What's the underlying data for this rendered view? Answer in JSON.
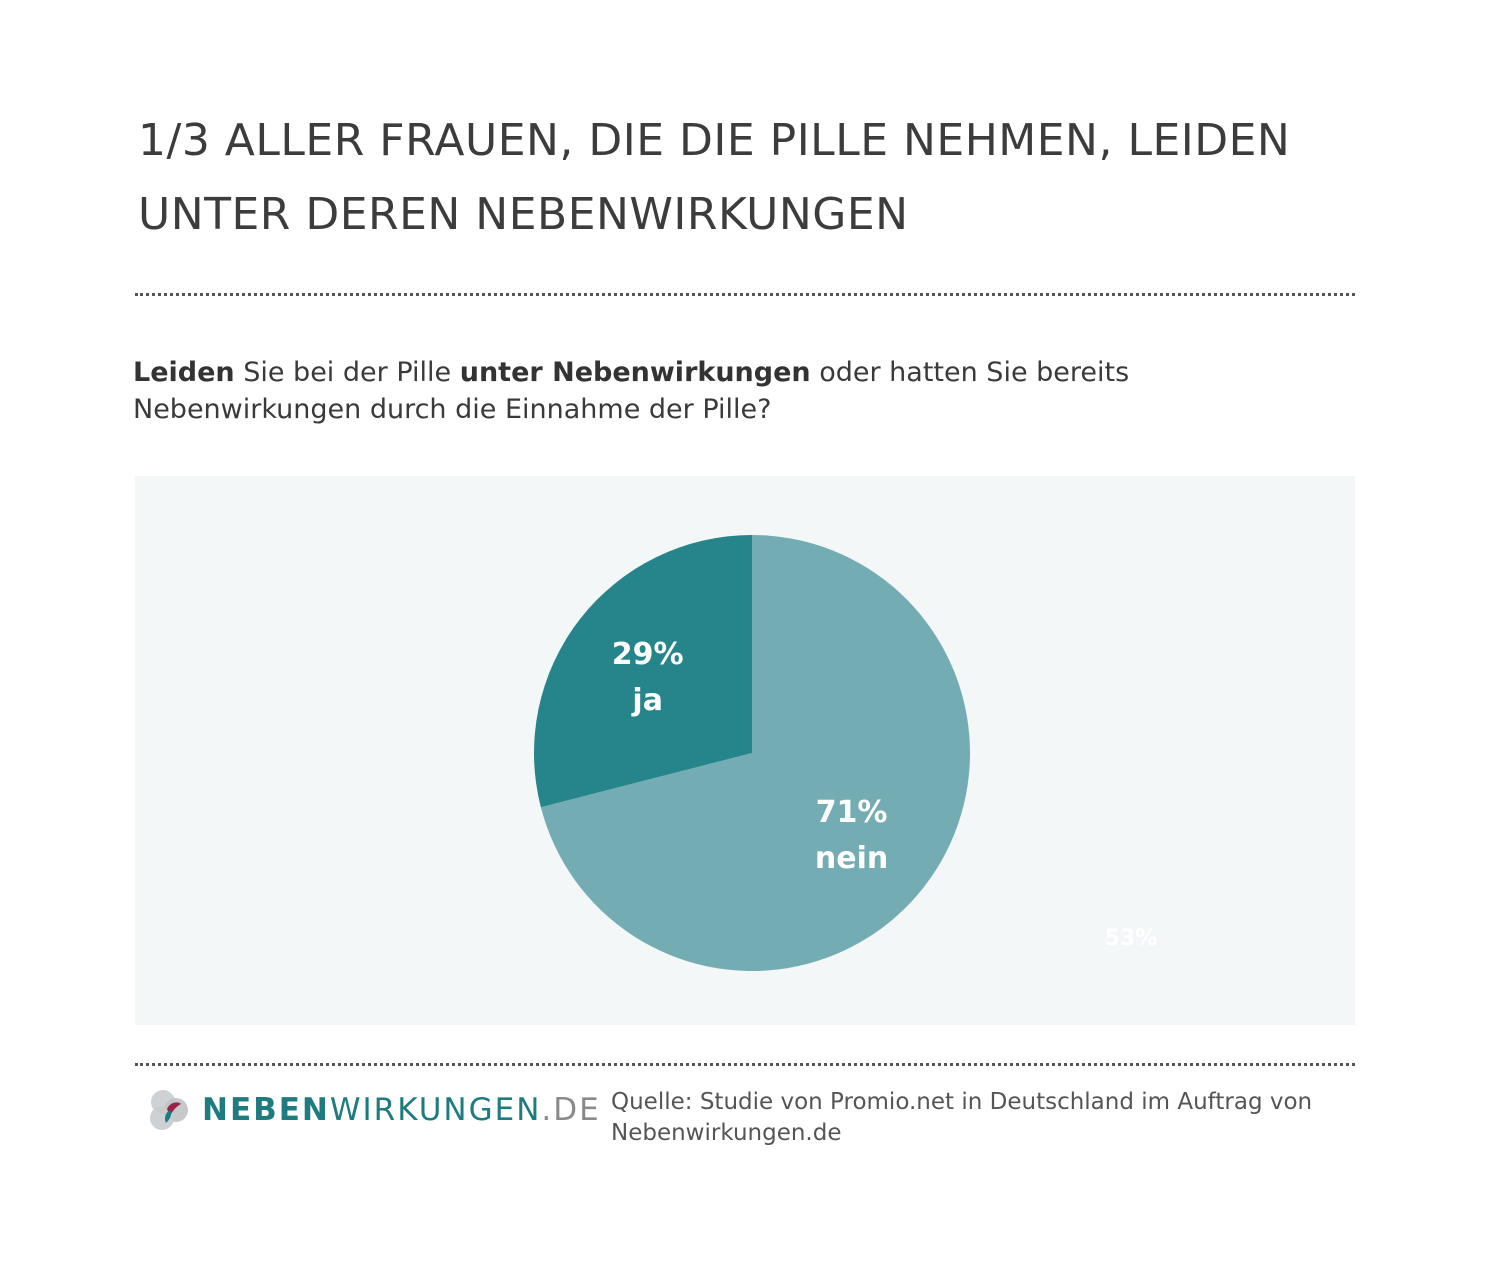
{
  "headline": {
    "line1": "1/3 ALLER FRAUEN, DIE DIE PILLE NEHMEN, LEIDEN",
    "line2": "UNTER DEREN NEBENWIRKUNGEN"
  },
  "question": {
    "part1_bold": "Leiden",
    "part2": " Sie bei der Pille ",
    "part3_bold": "unter Nebenwirkungen",
    "part4": " oder hatten Sie bereits",
    "line2": "Nebenwirkungen durch die Einnahme der Pille?"
  },
  "chart_data": {
    "type": "pie",
    "slices": [
      {
        "label": "ja",
        "value": 29,
        "value_label": "29%",
        "color": "#25858a"
      },
      {
        "label": "nein",
        "value": 71,
        "value_label": "71%",
        "color": "#73adb3"
      }
    ],
    "stray_label": "53%"
  },
  "footer": {
    "logo_strong": "NEBEN",
    "logo_light": "WIRKUNGEN",
    "logo_tld": ".DE",
    "source_line1": "Quelle: Studie von Promio.net in Deutschland im Auftrag von",
    "source_line2": "Nebenwirkungen.de"
  },
  "colors": {
    "panel_bg": "#f3f7f8",
    "slice_ja": "#25858a",
    "slice_nein": "#73adb3",
    "brand": "#1e7c80"
  }
}
